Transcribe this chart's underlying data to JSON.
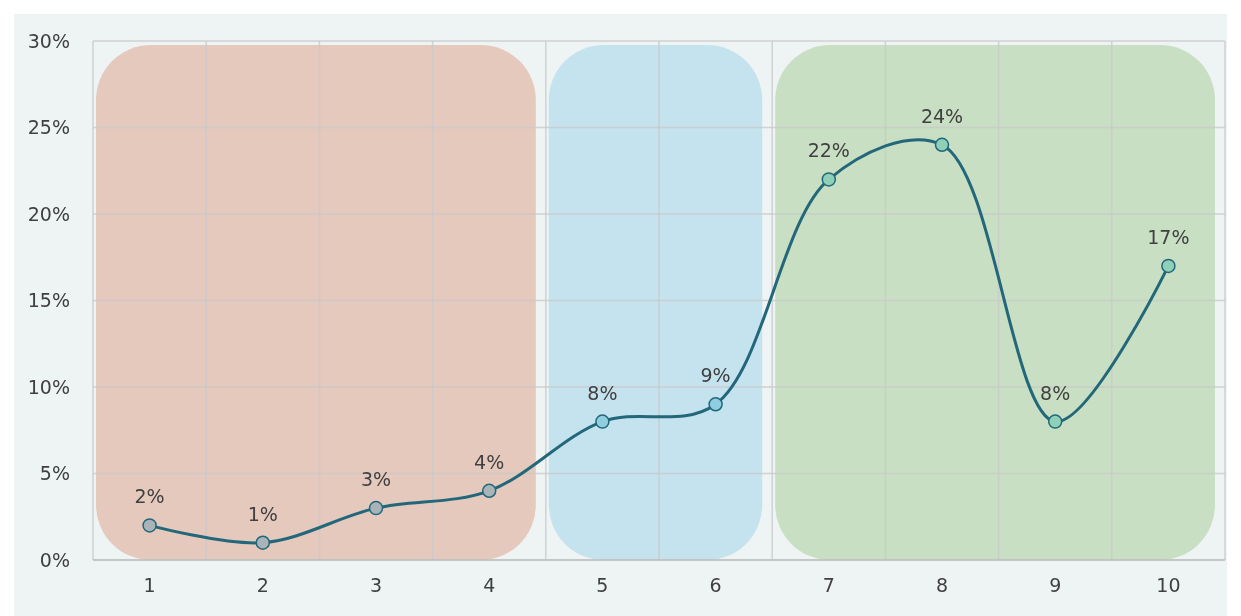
{
  "chart_data": {
    "type": "line",
    "categories": [
      "1",
      "2",
      "3",
      "4",
      "5",
      "6",
      "7",
      "8",
      "9",
      "10"
    ],
    "series": [
      {
        "color": "#22677a",
        "values": [
          2,
          1,
          3,
          4,
          8,
          9,
          22,
          24,
          8,
          17
        ],
        "colors": [
          "#a9b4b8",
          "#a9b4b8",
          "#a9b4b8",
          "#a9b4b8",
          "#8fcde0",
          "#8fcde0",
          "#8fd0b8",
          "#8fd0b8",
          "#8fd0b8",
          "#8fd0b8"
        ],
        "value_labels": [
          "2%",
          "1%",
          "3%",
          "4%",
          "8%",
          "9%",
          "22%",
          "24%",
          "8%",
          "17%"
        ]
      }
    ],
    "ylim": [
      0,
      30
    ],
    "yticks": [
      {
        "value": 0,
        "label": "0%"
      },
      {
        "value": 5,
        "label": "5%"
      },
      {
        "value": 10,
        "label": "10%"
      },
      {
        "value": 15,
        "label": "15%"
      },
      {
        "value": 20,
        "label": "20%"
      },
      {
        "value": 25,
        "label": "25%"
      },
      {
        "value": 30,
        "label": "30%"
      }
    ],
    "grid": true,
    "marker": "circle",
    "line_style": "solid",
    "bands": [
      {
        "axis": "x",
        "from": "1",
        "to": "4",
        "color": "#e5c9bd"
      },
      {
        "axis": "x",
        "from": "5",
        "to": "6",
        "color": "#c5e3ee"
      },
      {
        "axis": "x",
        "from": "7",
        "to": "10",
        "color": "#c8dfc3"
      }
    ]
  }
}
